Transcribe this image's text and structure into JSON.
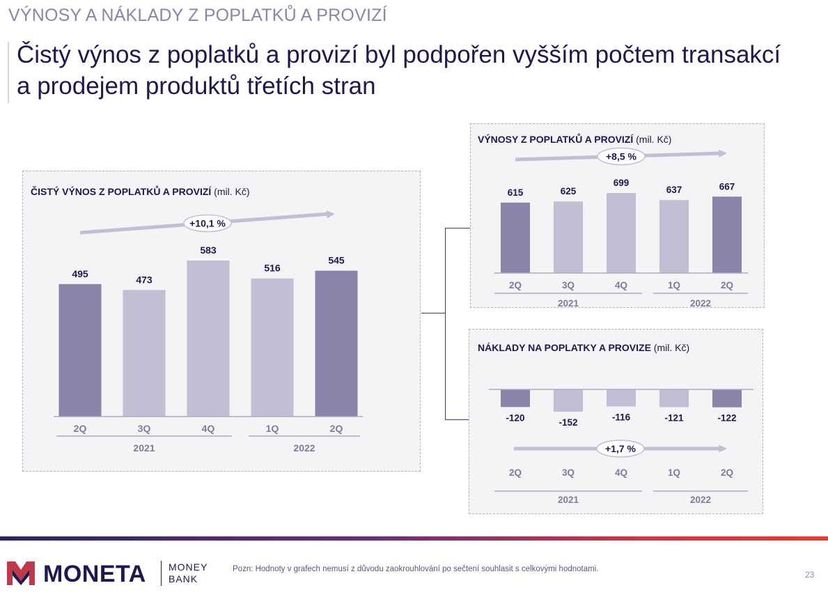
{
  "header": {
    "kicker": "VÝNOSY A NÁKLADY Z POPLATKŮ A PROVIZÍ",
    "title_line1": "Čistý výnos z poplatků a provizí byl podpořen vyšším počtem transakcí",
    "title_line2": "a prodejem produktů třetích stran"
  },
  "colors": {
    "dark_bar": "#8a84ab",
    "light_bar": "#c2bfd5",
    "axis": "#aeaac2",
    "text": "#1d1850",
    "muted": "#7e7b9c"
  },
  "chart_data": [
    {
      "id": "net",
      "type": "bar",
      "title_bold": "ČISTÝ VÝNOS Z POPLATKŮ A PROVIZÍ",
      "title_unit": " (mil. Kč)",
      "categories": [
        "2Q",
        "3Q",
        "4Q",
        "1Q",
        "2Q"
      ],
      "groups": [
        {
          "label": "2021",
          "count": 3
        },
        {
          "label": "2022",
          "count": 2
        }
      ],
      "values": [
        495,
        473,
        583,
        516,
        545
      ],
      "highlight": [
        true,
        false,
        false,
        false,
        true
      ],
      "growth_label": "+10,1 %",
      "ylim": [
        0,
        583
      ]
    },
    {
      "id": "income",
      "type": "bar",
      "title_bold": "VÝNOSY Z POPLATKŮ A PROVIZÍ",
      "title_unit": " (mil. Kč)",
      "categories": [
        "2Q",
        "3Q",
        "4Q",
        "1Q",
        "2Q"
      ],
      "groups": [
        {
          "label": "2021",
          "count": 3
        },
        {
          "label": "2022",
          "count": 2
        }
      ],
      "values": [
        615,
        625,
        699,
        637,
        667
      ],
      "highlight": [
        true,
        false,
        false,
        false,
        true
      ],
      "growth_label": "+8,5 %",
      "ylim": [
        0,
        699
      ]
    },
    {
      "id": "costs",
      "type": "bar",
      "title_bold": "NÁKLADY NA POPLATKY A PROVIZE",
      "title_unit": " (mil. Kč)",
      "categories": [
        "2Q",
        "3Q",
        "4Q",
        "1Q",
        "2Q"
      ],
      "groups": [
        {
          "label": "2021",
          "count": 3
        },
        {
          "label": "2022",
          "count": 2
        }
      ],
      "values": [
        -120,
        -152,
        -116,
        -121,
        -122
      ],
      "highlight": [
        true,
        false,
        false,
        false,
        true
      ],
      "growth_label": "+1,7 %",
      "ylim": [
        -152,
        0
      ]
    }
  ],
  "footer": {
    "brand": "MONETA",
    "brand_sub1": "MONEY",
    "brand_sub2": "BANK",
    "note": "Pozn: Hodnoty v grafech nemusí z důvodu zaokrouhlování po sečtení souhlasit s celkovými hodnotami.",
    "page": "23"
  }
}
